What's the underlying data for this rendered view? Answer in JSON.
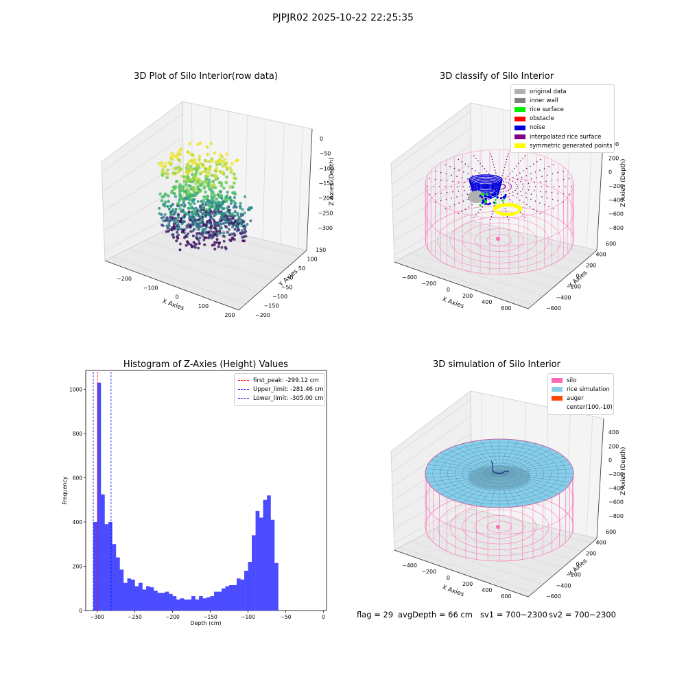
{
  "figure": {
    "suptitle": "PJPJR02 2025-10-22 22:25:35",
    "footer": {
      "flag": "flag = 29",
      "avg_depth": "avgDepth = 66 cm",
      "sv1": "sv1 = 700~2300",
      "sv2": "sv2 = 700~2300"
    }
  },
  "colors": {
    "original": "#b0b0b0",
    "inner_wall": "#808080",
    "rice_surface": "#00ee00",
    "obstacle": "#ff0000",
    "noise": "#0000dd",
    "interp": "#800080",
    "symmetric": "#ffff00",
    "silo": "#ff69b4",
    "rice_sim": "#87ceeb",
    "auger": "#ff4500",
    "hist_bar": "#4b4bff"
  },
  "chart_data": [
    {
      "type": "scatter",
      "subtype": "scatter3d",
      "title": "3D Plot of Silo Interior(row data)",
      "xlabel": "X Axies",
      "ylabel": "Y Axies",
      "zlabel": "Z Axies (Depth)",
      "xticks": [
        "−200",
        "−100",
        "0",
        "100",
        "200"
      ],
      "yticks": [
        "−200",
        "−150",
        "−100",
        "−50",
        "0",
        "50",
        "100",
        "150"
      ],
      "zticks": [
        "0",
        "−50",
        "−100",
        "−150",
        "−200",
        "−250",
        "−300"
      ],
      "xlim": [
        -250,
        200
      ],
      "ylim": [
        -200,
        175
      ],
      "zlim": [
        -320,
        10
      ],
      "colormap": "viridis"
    },
    {
      "type": "scatter",
      "subtype": "scatter3d",
      "title": "3D classify of Silo Interior",
      "xlabel": "X Axies",
      "ylabel": "Y Axies",
      "zlabel": "Z Axies (Depth)",
      "xticks": [
        "−400",
        "−200",
        "0",
        "200",
        "400",
        "600"
      ],
      "yticks": [
        "−600",
        "−400",
        "−200",
        "0",
        "200",
        "400",
        "600"
      ],
      "zticks": [
        "400",
        "200",
        "0",
        "−200",
        "−400",
        "−600",
        "−800"
      ],
      "legend_position": "top-right",
      "legend": [
        {
          "label": "original data",
          "color": "#b0b0b0"
        },
        {
          "label": "inner wall",
          "color": "#808080"
        },
        {
          "label": "rice surface",
          "color": "#00ee00"
        },
        {
          "label": "obstacle",
          "color": "#ff0000"
        },
        {
          "label": "noise",
          "color": "#0000dd"
        },
        {
          "label": "interpolated rice surface",
          "color": "#800080"
        },
        {
          "label": "symmetric generated points",
          "color": "#ffff00"
        }
      ]
    },
    {
      "type": "bar",
      "subtype": "histogram",
      "title": "Histogram of Z-Axies (Height) Values",
      "xlabel": "Depth (cm)",
      "ylabel": "Frequency",
      "xlim": [
        -315,
        4
      ],
      "ylim": [
        0,
        1085
      ],
      "xticks": [
        -300,
        -250,
        -200,
        -150,
        -100,
        -50,
        0
      ],
      "yticks": [
        0,
        200,
        400,
        600,
        800,
        1000
      ],
      "bin_start": -305,
      "bin_width": 5,
      "counts": [
        400,
        1030,
        525,
        390,
        400,
        300,
        240,
        185,
        125,
        145,
        140,
        110,
        125,
        95,
        110,
        105,
        90,
        80,
        80,
        85,
        75,
        65,
        50,
        55,
        50,
        50,
        65,
        50,
        65,
        55,
        60,
        65,
        85,
        85,
        100,
        110,
        115,
        115,
        145,
        140,
        180,
        220,
        340,
        450,
        420,
        500,
        520,
        410,
        215
      ],
      "vlines": [
        {
          "label": "first_peak: -299.12 cm",
          "x": -299.12,
          "color": "#ff0000"
        },
        {
          "label": "Upper_limit: -281.46 cm",
          "x": -281.46,
          "color": "#0000ff"
        },
        {
          "label": "Lower_limit: -305.00 cm",
          "x": -305.0,
          "color": "#0000ff"
        }
      ],
      "legend_position": "top-right"
    },
    {
      "type": "area",
      "subtype": "surface3d",
      "title": "3D simulation of Silo Interior",
      "xlabel": "X Axies",
      "ylabel": "Y Axies",
      "zlabel": "Z Axies (Depth)",
      "xticks": [
        "−400",
        "−200",
        "0",
        "200",
        "400",
        "600"
      ],
      "yticks": [
        "−600",
        "−400",
        "−200",
        "0",
        "200",
        "400",
        "600"
      ],
      "zticks": [
        "400",
        "200",
        "0",
        "−200",
        "−400",
        "−600",
        "−800"
      ],
      "legend_position": "top-right",
      "legend": [
        {
          "label": "silo",
          "color": "#ff69b4"
        },
        {
          "label": "rice simulation",
          "color": "#87ceeb"
        },
        {
          "label": "auger",
          "color": "#ff4500"
        },
        {
          "label": "center(100,-10)",
          "color": ""
        }
      ]
    }
  ]
}
